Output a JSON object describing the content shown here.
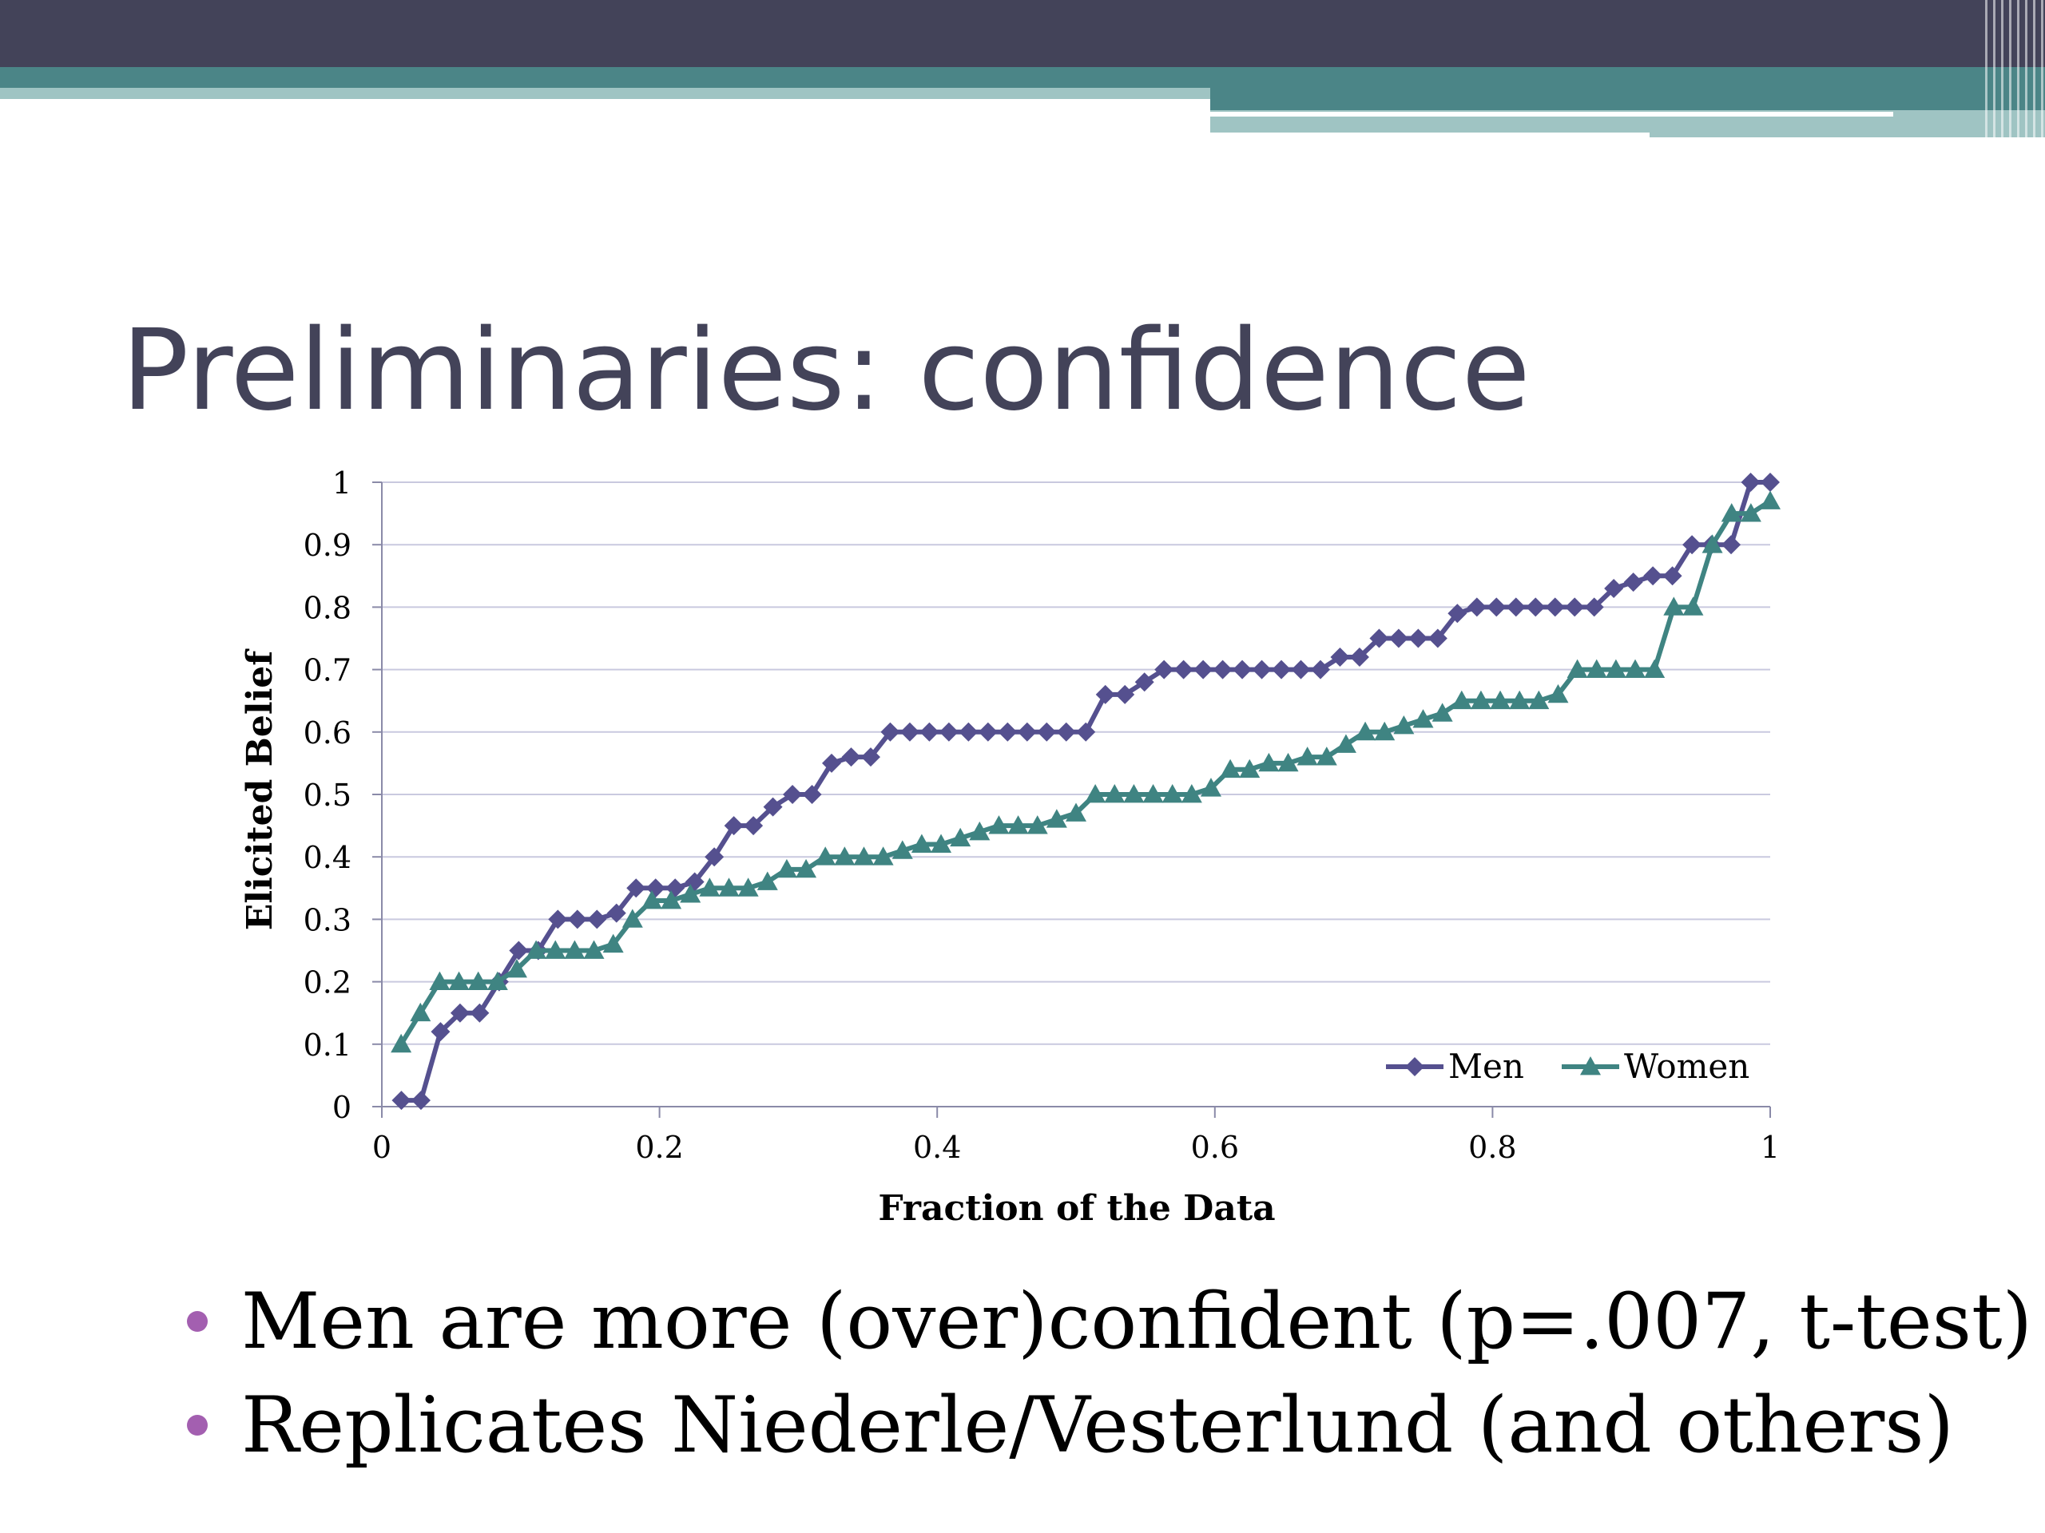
{
  "slide": {
    "title": "Preliminaries: confidence",
    "bullets": [
      "Men are more (over)confident (p=.007, t-test)",
      "Replicates Niederle/Vesterlund (and others)"
    ],
    "bullet_color": "#a35fb0",
    "theme_colors": {
      "dark": "#434359",
      "teal": "#4b8587",
      "light_teal": "#9fc4c3"
    }
  },
  "chart_data": {
    "type": "line",
    "title": "",
    "xlabel": "Fraction of the Data",
    "ylabel": "Elicited Belief",
    "xlim": [
      0,
      1
    ],
    "ylim": [
      0,
      1
    ],
    "x_ticks": [
      "0",
      "0.2",
      "0.4",
      "0.6",
      "0.8",
      "1"
    ],
    "y_ticks": [
      "0",
      "0.1",
      "0.2",
      "0.3",
      "0.4",
      "0.5",
      "0.6",
      "0.7",
      "0.8",
      "0.9",
      "1"
    ],
    "grid": true,
    "legend_position": "bottom-right",
    "series": [
      {
        "name": "Men",
        "color": "#55508f",
        "marker": "diamond",
        "values": [
          0.01,
          0.01,
          0.12,
          0.15,
          0.15,
          0.2,
          0.25,
          0.25,
          0.3,
          0.3,
          0.3,
          0.31,
          0.35,
          0.35,
          0.35,
          0.36,
          0.4,
          0.45,
          0.45,
          0.48,
          0.5,
          0.5,
          0.55,
          0.56,
          0.56,
          0.6,
          0.6,
          0.6,
          0.6,
          0.6,
          0.6,
          0.6,
          0.6,
          0.6,
          0.6,
          0.6,
          0.66,
          0.66,
          0.68,
          0.7,
          0.7,
          0.7,
          0.7,
          0.7,
          0.7,
          0.7,
          0.7,
          0.7,
          0.72,
          0.72,
          0.75,
          0.75,
          0.75,
          0.75,
          0.79,
          0.8,
          0.8,
          0.8,
          0.8,
          0.8,
          0.8,
          0.8,
          0.83,
          0.84,
          0.85,
          0.85,
          0.9,
          0.9,
          0.9,
          1.0,
          1.0
        ]
      },
      {
        "name": "Women",
        "color": "#3f8482",
        "marker": "triangle",
        "values": [
          0.1,
          0.15,
          0.2,
          0.2,
          0.2,
          0.2,
          0.22,
          0.25,
          0.25,
          0.25,
          0.25,
          0.26,
          0.3,
          0.33,
          0.33,
          0.34,
          0.35,
          0.35,
          0.35,
          0.36,
          0.38,
          0.38,
          0.4,
          0.4,
          0.4,
          0.4,
          0.41,
          0.42,
          0.42,
          0.43,
          0.44,
          0.45,
          0.45,
          0.45,
          0.46,
          0.47,
          0.5,
          0.5,
          0.5,
          0.5,
          0.5,
          0.5,
          0.51,
          0.54,
          0.54,
          0.55,
          0.55,
          0.56,
          0.56,
          0.58,
          0.6,
          0.6,
          0.61,
          0.62,
          0.63,
          0.65,
          0.65,
          0.65,
          0.65,
          0.65,
          0.66,
          0.7,
          0.7,
          0.7,
          0.7,
          0.7,
          0.8,
          0.8,
          0.9,
          0.95,
          0.95,
          0.97
        ]
      }
    ]
  }
}
